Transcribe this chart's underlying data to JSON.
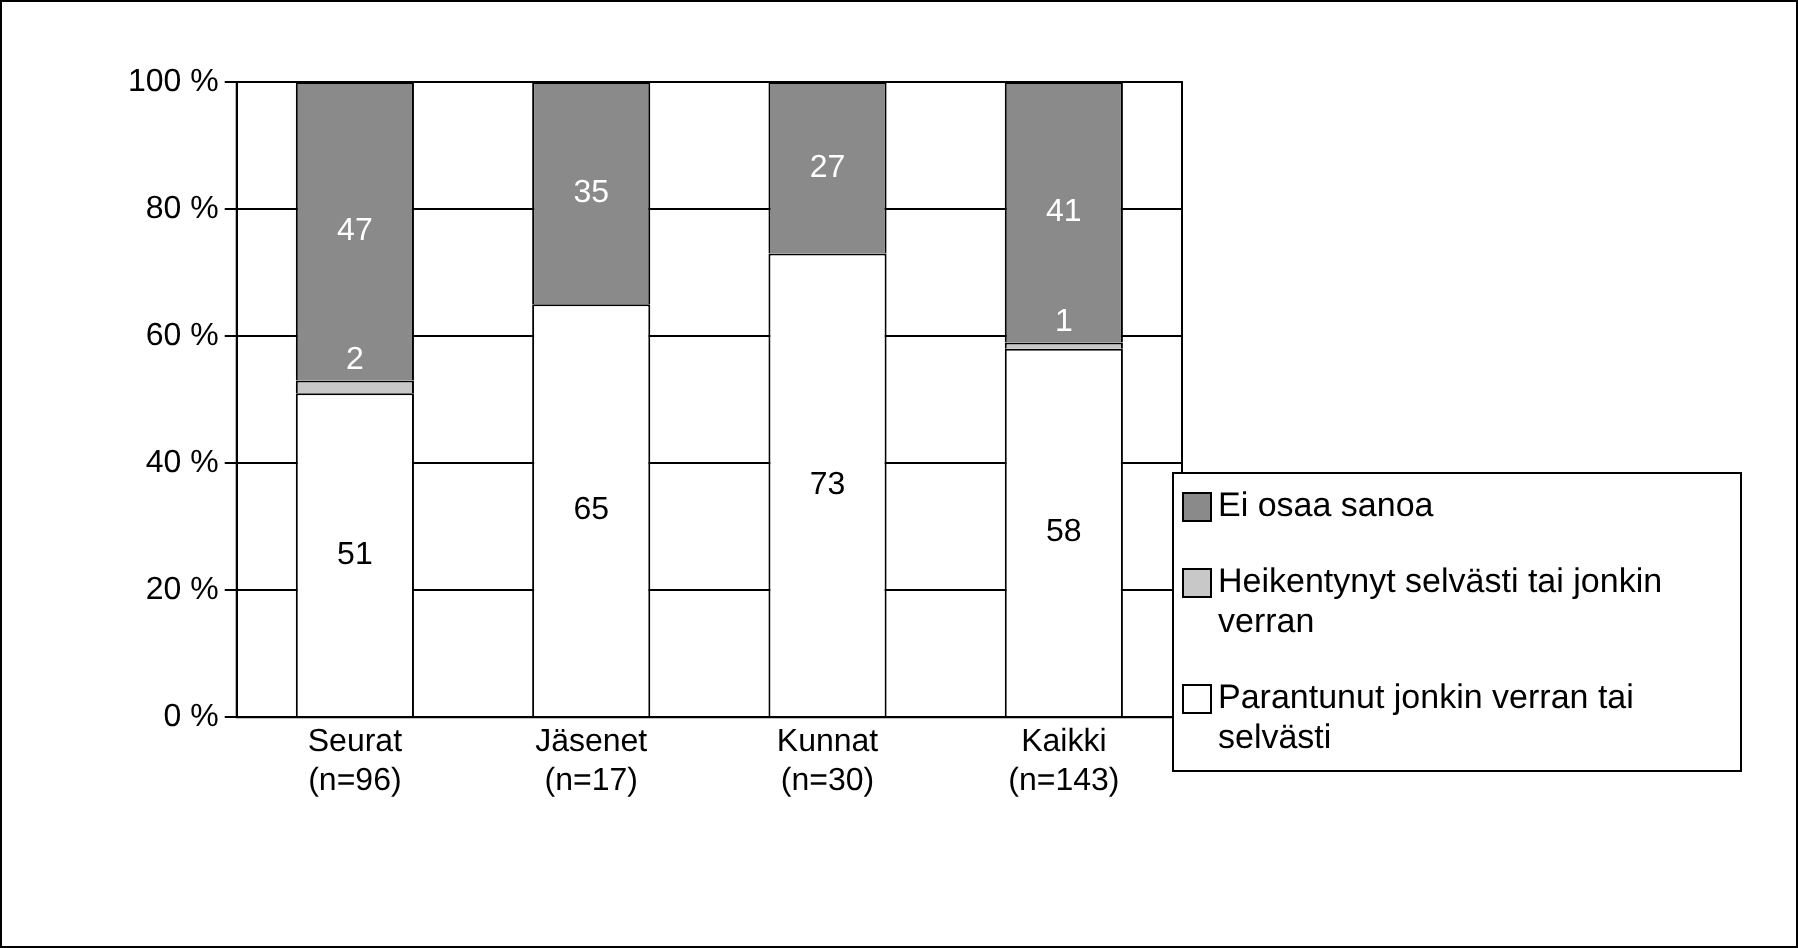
{
  "chart_data": {
    "type": "bar",
    "stacked": true,
    "categories": [
      "Seurat\n(n=96)",
      "Jäsenet\n(n=17)",
      "Kunnat\n(n=30)",
      "Kaikki\n(n=143)"
    ],
    "series": [
      {
        "name": "Parantunut jonkin verran tai selvästi",
        "color": "#ffffff",
        "values": [
          51,
          65,
          73,
          58
        ],
        "value_labels": [
          "51",
          "65",
          "73",
          "58"
        ]
      },
      {
        "name": "Heikentynyt selvästi tai jonkin verran",
        "color": "#c8c8c8",
        "values": [
          2,
          0,
          0,
          1
        ],
        "value_labels": [
          "2",
          null,
          null,
          "1"
        ]
      },
      {
        "name": "Ei osaa sanoa",
        "color": "#8a8a8a",
        "values": [
          47,
          35,
          27,
          41
        ],
        "value_labels": [
          "47",
          "35",
          "27",
          "41"
        ]
      }
    ],
    "ylim": [
      0,
      100
    ],
    "yticks": [
      {
        "value": 0,
        "label": "0 %"
      },
      {
        "value": 20,
        "label": "20 %"
      },
      {
        "value": 40,
        "label": "40 %"
      },
      {
        "value": 60,
        "label": "60 %"
      },
      {
        "value": 80,
        "label": "80 %"
      },
      {
        "value": 100,
        "label": "100 %"
      }
    ],
    "grid": "y",
    "legend": "right"
  }
}
